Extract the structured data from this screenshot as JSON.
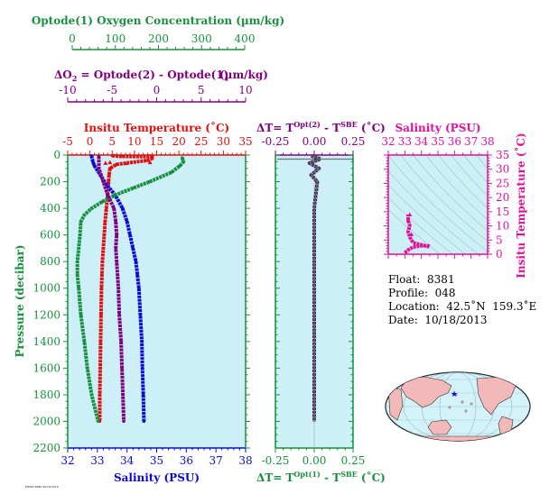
{
  "chart_data": {
    "type": "line",
    "colors": {
      "oxygen": "#16903c",
      "delta_o2": "#800080",
      "temperature": "#e01010",
      "salinity": "#0a0ad8",
      "delta_t": "#16903c",
      "ts_diagram": "#e0109a",
      "panel_bg": "#cdeff8",
      "map_land": "#f3b8b8",
      "map_ocean": "#d3f2fa"
    },
    "axes": {
      "oxygen_label": "Optode(1) Oxygen Concentration (µm/kg)",
      "oxygen_range": [
        0,
        400
      ],
      "oxygen_ticks": [
        "0",
        "100",
        "200",
        "300",
        "400"
      ],
      "delta_o2_label_left": "ΔO",
      "delta_o2_label_sub": "2",
      "delta_o2_label_right": "= Optode(2) - Optode(1)",
      "delta_o2_units": "(µm/kg)",
      "delta_o2_range": [
        -10,
        10
      ],
      "delta_o2_ticks": [
        "-10",
        "-5",
        "0",
        "5",
        "10"
      ],
      "temperature_label": "Insitu Temperature (˚C)",
      "temperature_range": [
        -5,
        35
      ],
      "temperature_ticks": [
        "-5",
        "0",
        "5",
        "10",
        "15",
        "20",
        "25",
        "30",
        "35"
      ],
      "salinity_label": "Salinity (PSU)",
      "salinity_range": [
        32,
        38
      ],
      "salinity_ticks": [
        "32",
        "33",
        "34",
        "35",
        "36",
        "37",
        "38"
      ],
      "pressure_label": "Pressure (decibar)",
      "pressure_range": [
        0,
        2200
      ],
      "pressure_ticks": [
        "0",
        "200",
        "400",
        "600",
        "800",
        "1000",
        "1200",
        "1400",
        "1600",
        "1800",
        "2000",
        "2200"
      ],
      "delta_t_top_label": "ΔT= T",
      "delta_t_top_sup": "Opt(2)",
      "delta_t_top_mid": " - T",
      "delta_t_top_sup2": "SBE",
      "delta_t_top_units": " (˚C)",
      "delta_t_bottom_label": "ΔT= T",
      "delta_t_bottom_sup": "Opt(1)",
      "delta_t_range": [
        -0.25,
        0.25
      ],
      "delta_t_ticks": [
        "-0.25",
        "0.00",
        "0.25"
      ],
      "ts_salinity_label": "Salinity (PSU)",
      "ts_salinity_range": [
        32,
        38
      ],
      "ts_salinity_ticks": [
        "32",
        "33",
        "34",
        "35",
        "36",
        "37",
        "38"
      ],
      "ts_temperature_label": "Insitu Temperature (˚C)",
      "ts_temperature_range": [
        0,
        35
      ],
      "ts_temperature_ticks": [
        "0",
        "5",
        "10",
        "15",
        "20",
        "25",
        "30",
        "35"
      ]
    },
    "series": [
      {
        "name": "Temperature",
        "axis": "temperature",
        "points": [
          [
            5,
            5
          ],
          [
            7,
            10
          ],
          [
            14,
            12
          ],
          [
            14,
            25
          ],
          [
            13,
            40
          ],
          [
            6,
            70
          ],
          [
            4.5,
            100
          ],
          [
            4.3,
            150
          ],
          [
            4.2,
            200
          ],
          [
            4.0,
            300
          ],
          [
            3.7,
            400
          ],
          [
            3.4,
            500
          ],
          [
            3.2,
            600
          ],
          [
            3.0,
            700
          ],
          [
            2.8,
            800
          ],
          [
            2.7,
            900
          ],
          [
            2.6,
            1000
          ],
          [
            2.5,
            1200
          ],
          [
            2.4,
            1400
          ],
          [
            2.3,
            1600
          ],
          [
            2.2,
            1800
          ],
          [
            2.2,
            2000
          ]
        ]
      },
      {
        "name": "Salinity",
        "axis": "salinity",
        "points": [
          [
            32.8,
            5
          ],
          [
            32.85,
            50
          ],
          [
            32.9,
            80
          ],
          [
            33.1,
            150
          ],
          [
            33.3,
            220
          ],
          [
            33.6,
            300
          ],
          [
            33.85,
            400
          ],
          [
            34.0,
            500
          ],
          [
            34.1,
            600
          ],
          [
            34.2,
            700
          ],
          [
            34.3,
            800
          ],
          [
            34.35,
            900
          ],
          [
            34.4,
            1000
          ],
          [
            34.45,
            1200
          ],
          [
            34.5,
            1400
          ],
          [
            34.52,
            1600
          ],
          [
            34.55,
            1800
          ],
          [
            34.57,
            2000
          ]
        ]
      },
      {
        "name": "Oxygen",
        "axis": "oxygen",
        "points": [
          [
            255,
            20
          ],
          [
            258,
            50
          ],
          [
            250,
            80
          ],
          [
            230,
            130
          ],
          [
            180,
            200
          ],
          [
            140,
            250
          ],
          [
            100,
            300
          ],
          [
            70,
            350
          ],
          [
            45,
            400
          ],
          [
            28,
            450
          ],
          [
            20,
            500
          ],
          [
            18,
            600
          ],
          [
            15,
            700
          ],
          [
            12,
            800
          ],
          [
            12,
            900
          ],
          [
            15,
            1000
          ],
          [
            20,
            1200
          ],
          [
            28,
            1400
          ],
          [
            35,
            1600
          ],
          [
            45,
            1800
          ],
          [
            60,
            2000
          ]
        ]
      },
      {
        "name": "Delta O2",
        "axis": "delta_o2",
        "points": [
          [
            -6.5,
            10
          ],
          [
            -6.5,
            100
          ],
          [
            -6,
            200
          ],
          [
            -5.5,
            300
          ],
          [
            -4.8,
            400
          ],
          [
            -4.6,
            500
          ],
          [
            -4.5,
            600
          ],
          [
            -4.6,
            700
          ],
          [
            -4.5,
            800
          ],
          [
            -4.4,
            900
          ],
          [
            -4.3,
            1000
          ],
          [
            -4.2,
            1200
          ],
          [
            -4.0,
            1400
          ],
          [
            -3.9,
            1600
          ],
          [
            -3.8,
            1800
          ],
          [
            -3.7,
            2000
          ]
        ]
      },
      {
        "name": "Delta T Opt(2)",
        "axis": "delta_t",
        "points": [
          [
            -0.02,
            5
          ],
          [
            0.04,
            30
          ],
          [
            -0.03,
            60
          ],
          [
            0.03,
            100
          ],
          [
            -0.02,
            150
          ],
          [
            0.02,
            200
          ],
          [
            0.01,
            300
          ],
          [
            0.0,
            400
          ],
          [
            0.0,
            600
          ],
          [
            0.0,
            800
          ],
          [
            0.0,
            1000
          ],
          [
            0.0,
            1400
          ],
          [
            0.0,
            2000
          ]
        ]
      },
      {
        "name": "T-S",
        "axis": "ts",
        "points": [
          [
            33.0,
            0.5
          ],
          [
            33.2,
            1.5
          ],
          [
            33.5,
            2.5
          ],
          [
            34.0,
            3.0
          ],
          [
            34.4,
            3.0
          ],
          [
            34.5,
            2.6
          ],
          [
            33.5,
            4
          ],
          [
            33.3,
            6
          ],
          [
            33.2,
            8
          ],
          [
            33.3,
            10
          ],
          [
            33.2,
            12
          ],
          [
            33.2,
            14
          ]
        ]
      }
    ],
    "ts_surface_points": [
      [
        33.4,
        7
      ],
      [
        33.2,
        12
      ],
      [
        33.3,
        14
      ]
    ],
    "temp_surface_markers": [
      [
        4.5,
        55
      ],
      [
        13.5,
        55
      ],
      [
        3.5,
        60
      ],
      [
        8,
        62
      ]
    ]
  },
  "info": {
    "float": "Float:  8381",
    "profile": "Profile:  048",
    "location": "Location:  42.5˚N  159.3˚E",
    "date": "Date:  10/18/2013"
  },
  "map": {
    "marker_color": "#0000ff",
    "marker_lon": 159.3,
    "marker_lat": 42.5
  },
  "footer_note": "F8381/0048 2013/10/18"
}
